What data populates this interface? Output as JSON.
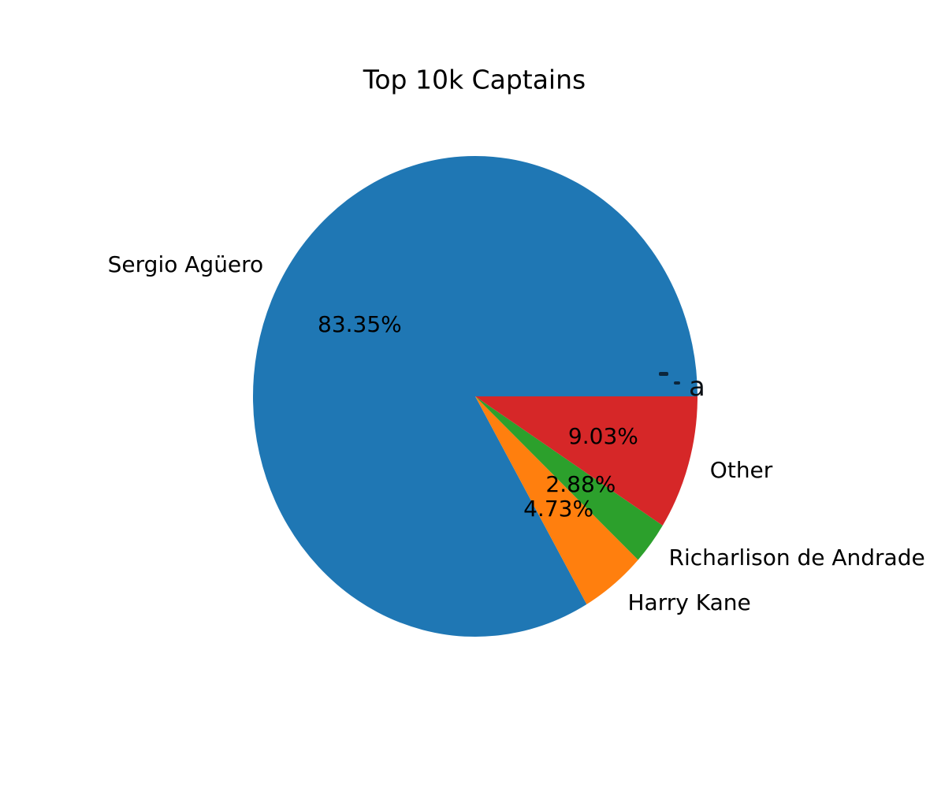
{
  "chart_data": {
    "type": "pie",
    "title": "Top 10k Captains",
    "legend_position": "none",
    "start_angle_deg": 0,
    "counterclockwise": true,
    "slices": [
      {
        "label": "Sergio Agüero",
        "value": 83.35,
        "pct_label": "83.35%",
        "color": "#1f77b4"
      },
      {
        "label": "Harry Kane",
        "value": 4.73,
        "pct_label": "4.73%",
        "color": "#ff7f0e"
      },
      {
        "label": "Richarlison de Andrade",
        "value": 2.88,
        "pct_label": "2.88%",
        "color": "#2ca02c"
      },
      {
        "label": "Other",
        "value": 9.03,
        "pct_label": "9.03%",
        "color": "#d62728"
      }
    ],
    "artifact_fragment": "a"
  }
}
